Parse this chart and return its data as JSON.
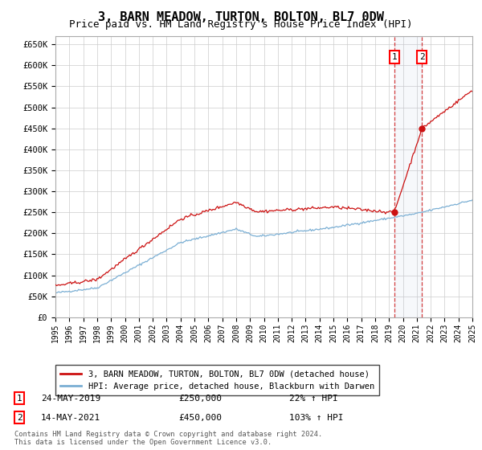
{
  "title": "3, BARN MEADOW, TURTON, BOLTON, BL7 0DW",
  "subtitle": "Price paid vs. HM Land Registry's House Price Index (HPI)",
  "title_fontsize": 11,
  "subtitle_fontsize": 9,
  "ylabel_ticks": [
    "£0",
    "£50K",
    "£100K",
    "£150K",
    "£200K",
    "£250K",
    "£300K",
    "£350K",
    "£400K",
    "£450K",
    "£500K",
    "£550K",
    "£600K",
    "£650K"
  ],
  "ytick_values": [
    0,
    50000,
    100000,
    150000,
    200000,
    250000,
    300000,
    350000,
    400000,
    450000,
    500000,
    550000,
    600000,
    650000
  ],
  "ylim": [
    0,
    670000
  ],
  "year_start": 1995,
  "year_end": 2025,
  "hpi_color": "#7bafd4",
  "price_color": "#cc1111",
  "sale1_price": 250000,
  "sale2_price": 450000,
  "sale1_year": 2019.38,
  "sale2_year": 2021.37,
  "legend_line1": "3, BARN MEADOW, TURTON, BOLTON, BL7 0DW (detached house)",
  "legend_line2": "HPI: Average price, detached house, Blackburn with Darwen",
  "footer1": "Contains HM Land Registry data © Crown copyright and database right 2024.",
  "footer2": "This data is licensed under the Open Government Licence v3.0.",
  "bg_color": "#ffffff",
  "grid_color": "#cccccc",
  "sale1_date": "24-MAY-2019",
  "sale1_hpi_pct": "22%",
  "sale2_date": "14-MAY-2021",
  "sale2_hpi_pct": "103%"
}
